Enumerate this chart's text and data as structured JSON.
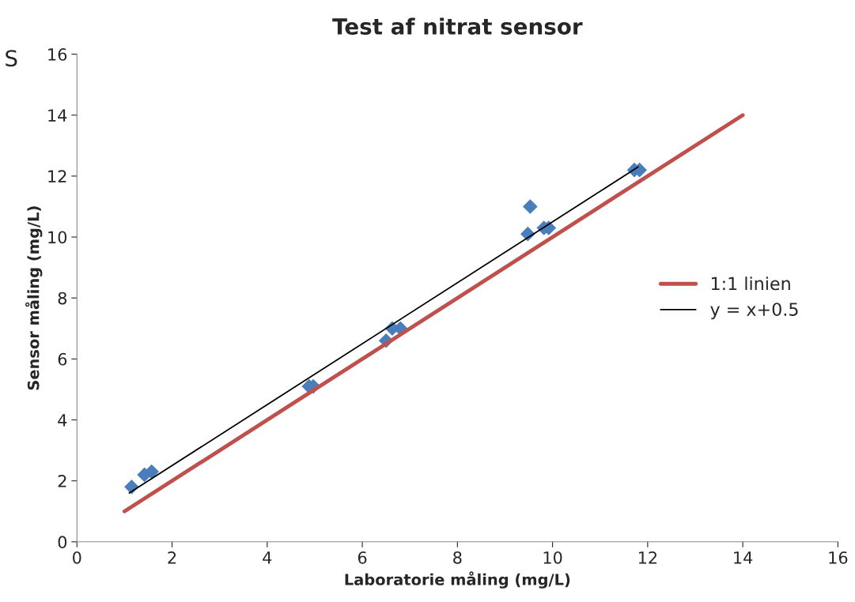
{
  "chart_data": {
    "type": "scatter",
    "title": "Test af nitrat sensor",
    "xlabel": "Laboratorie måling (mg/L)",
    "ylabel": "Sensor måling (mg/L)",
    "annotations": [
      "S"
    ],
    "xlim": [
      0,
      16
    ],
    "xticks": [
      0,
      2,
      4,
      6,
      8,
      10,
      12,
      14,
      16
    ],
    "ylim": [
      0,
      16
    ],
    "yticks": [
      0,
      2,
      4,
      6,
      8,
      10,
      12,
      14,
      16
    ],
    "grid": false,
    "legend": "right",
    "series": [
      {
        "marker": "diamond",
        "color": "#4a7ebb",
        "x": [
          1.15,
          1.42,
          1.57,
          4.88,
          4.97,
          6.5,
          6.63,
          6.8,
          9.48,
          9.53,
          9.82,
          9.92,
          11.72,
          11.83
        ],
        "values": [
          1.8,
          2.2,
          2.3,
          5.1,
          5.1,
          6.6,
          7.0,
          7.0,
          10.1,
          11.0,
          10.3,
          10.3,
          12.2,
          12.2
        ]
      },
      {
        "type": "line",
        "name": "1:1 linien",
        "color": "#c0504d",
        "marker": "none",
        "line_style": "solid",
        "x": [
          1,
          14
        ],
        "values": [
          1,
          14
        ]
      },
      {
        "type": "line",
        "name": "y = x+0.5",
        "color": "#000000",
        "marker": "none",
        "line_style": "solid",
        "x": [
          1.1,
          11.8
        ],
        "values": [
          1.6,
          12.3
        ]
      }
    ]
  }
}
